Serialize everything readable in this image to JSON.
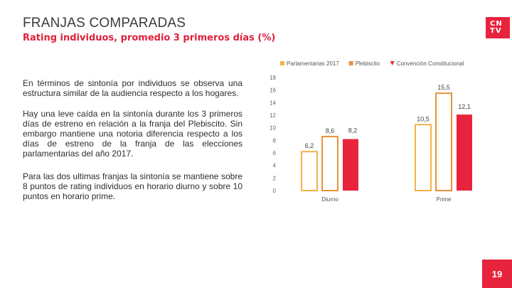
{
  "header": {
    "title": "FRANJAS COMPARADAS",
    "subtitle": "Rating individuos, promedio 3 primeros días (%)"
  },
  "logo": {
    "line1": "CN",
    "line2": "TV"
  },
  "body": {
    "p1": "En términos de sintonía por individuos se observa una estructura similar de la audiencia respecto a los hogares.",
    "p2": "Hay una leve caída en la sintonía durante los 3 primeros días de estreno en relación a la franja del Plebiscito. Sin embargo mantiene una notoria diferencia respecto a los días de estreno de la franja de las elecciones parlamentarias del año 2017.",
    "p3": "Para las dos ultimas franjas la sintonía se mantiene sobre 8 puntos de rating individuos en horario diurno y sobre 10 puntos en horario prime."
  },
  "page": {
    "number": "19"
  },
  "colors": {
    "accent": "#e8233d",
    "parlamentarias": "#f2b04c",
    "plebiscito": "#e8923a",
    "convencion": "#e8233d"
  },
  "chart_data": {
    "type": "bar",
    "categories": [
      "Diurno",
      "Prime"
    ],
    "series": [
      {
        "name": "Parlamentarias 2017",
        "values": [
          6.2,
          10.5
        ],
        "labels": [
          "6,2",
          "10,5"
        ]
      },
      {
        "name": "Plebiscito",
        "values": [
          8.6,
          15.5
        ],
        "labels": [
          "8,6",
          "15,5"
        ]
      },
      {
        "name": "Convención Constitucional",
        "values": [
          8.2,
          12.1
        ],
        "labels": [
          "8,2",
          "12,1"
        ]
      }
    ],
    "ylim": [
      0,
      18
    ],
    "yticks": [
      0,
      2,
      4,
      6,
      8,
      10,
      12,
      14,
      16,
      18
    ],
    "legend_position": "top",
    "title": "",
    "xlabel": "",
    "ylabel": ""
  }
}
